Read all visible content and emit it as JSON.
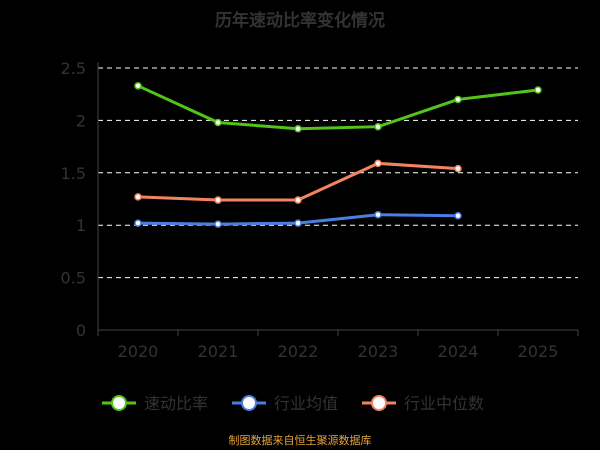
{
  "chart_data": {
    "type": "line",
    "title": "历年速动比率变化情况",
    "categories": [
      "2020",
      "2021",
      "2022",
      "2023",
      "2024",
      "2025"
    ],
    "ylim": [
      0,
      2.5
    ],
    "yticks": [
      "0",
      "0.5",
      "1",
      "1.5",
      "2",
      "2.5"
    ],
    "grid": true,
    "legend_position": "bottom",
    "series": [
      {
        "name": "速动比率",
        "color": "#52c41a",
        "values": [
          2.33,
          1.98,
          1.92,
          1.94,
          2.2,
          2.29
        ]
      },
      {
        "name": "行业均值",
        "color": "#4a7fe0",
        "values": [
          1.02,
          1.01,
          1.02,
          1.1,
          1.09,
          null
        ]
      },
      {
        "name": "行业中位数",
        "color": "#f4845f",
        "values": [
          1.27,
          1.24,
          1.24,
          1.59,
          1.54,
          null
        ]
      }
    ]
  },
  "footer": {
    "source": "制图数据来自恒生聚源数据库"
  }
}
